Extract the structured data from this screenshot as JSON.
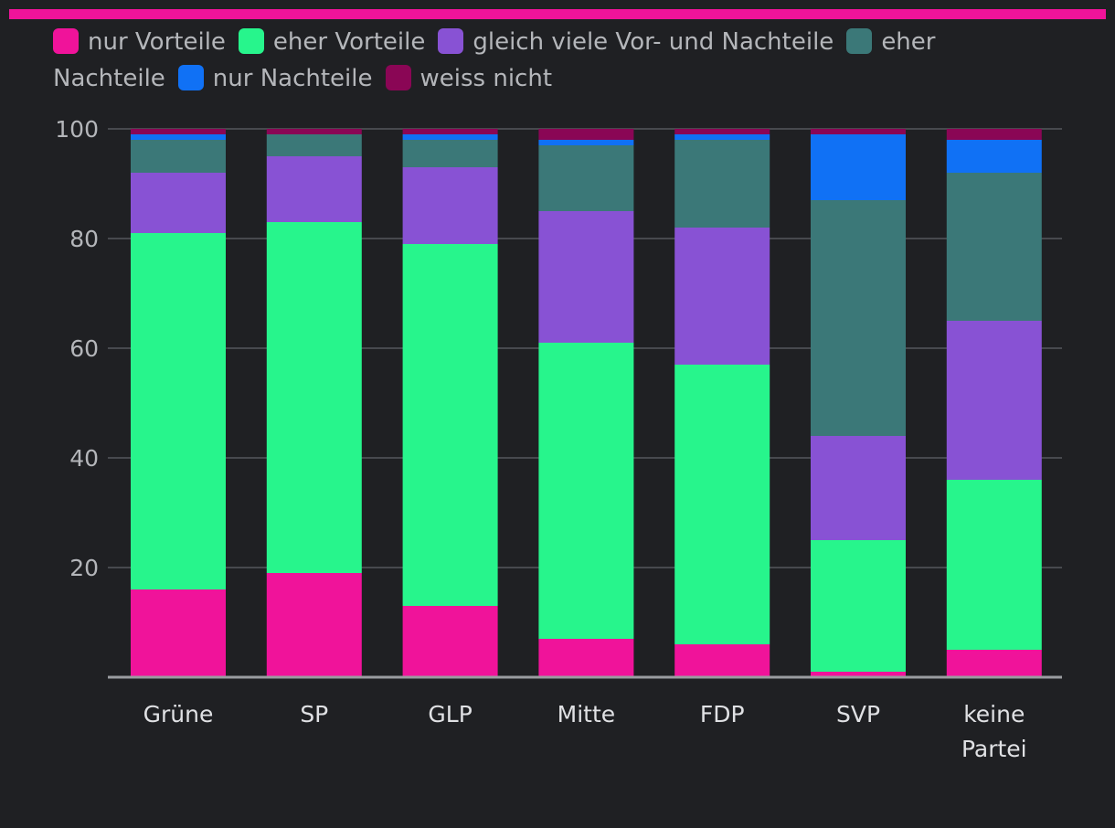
{
  "chart_data": {
    "type": "bar",
    "stacked": true,
    "categories": [
      "Grüne",
      "SP",
      "GLP",
      "Mitte",
      "FDP",
      "SVP",
      "keine Partei"
    ],
    "series": [
      {
        "name": "nur Vorteile",
        "color": "#f0139a",
        "values": [
          16,
          19,
          13,
          7,
          6,
          1,
          5
        ]
      },
      {
        "name": "eher Vorteile",
        "color": "#27f58c",
        "values": [
          65,
          64,
          66,
          54,
          51,
          24,
          31
        ]
      },
      {
        "name": "gleich viele Vor- und Nachteile",
        "color": "#8852d4",
        "values": [
          11,
          12,
          14,
          24,
          25,
          19,
          29
        ]
      },
      {
        "name": "eher Nachteile",
        "color": "#3b7878",
        "values": [
          6,
          4,
          5,
          12,
          16,
          43,
          27
        ]
      },
      {
        "name": "nur Nachteile",
        "color": "#1071f5",
        "values": [
          1,
          0,
          1,
          1,
          1,
          12,
          6
        ]
      },
      {
        "name": "weiss nicht",
        "color": "#8a0655",
        "values": [
          1,
          1,
          1,
          2,
          1,
          1,
          2
        ]
      }
    ],
    "y_ticks": [
      20,
      40,
      60,
      80,
      100
    ],
    "ylim": [
      0,
      100
    ],
    "grid": true,
    "legend_position": "top",
    "title": "",
    "xlabel": "",
    "ylabel": ""
  }
}
